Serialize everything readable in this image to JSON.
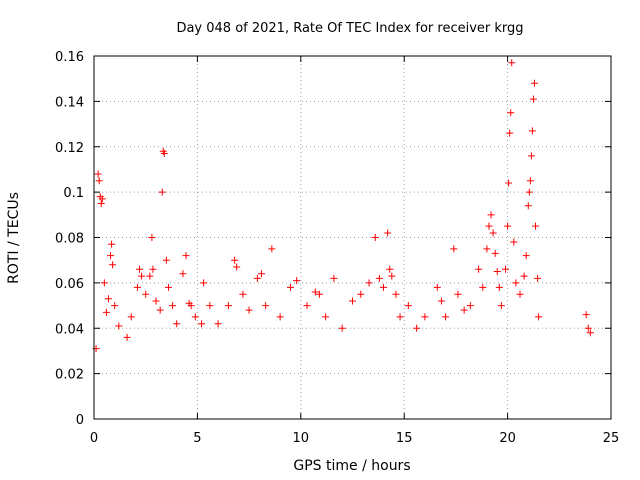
{
  "chart_data": {
    "type": "scatter",
    "title": "Day 048 of 2021, Rate Of TEC Index for receiver krgg",
    "xlabel": "GPS time / hours",
    "ylabel": "ROTI / TECUs",
    "xlim": [
      0,
      25
    ],
    "ylim": [
      0,
      0.16
    ],
    "x_ticks": [
      0,
      5,
      10,
      15,
      20,
      25
    ],
    "y_ticks": [
      0,
      0.02,
      0.04,
      0.06,
      0.08,
      0.1,
      0.12,
      0.14,
      0.16
    ],
    "x_tick_labels": [
      "0",
      "5",
      "10",
      "15",
      "20",
      "25"
    ],
    "y_tick_labels": [
      "0",
      "0.02",
      "0.04",
      "0.06",
      "0.08",
      "0.1",
      "0.12",
      "0.14",
      "0.16"
    ],
    "grid": true,
    "marker": "plus",
    "color": "#ff0000",
    "series": [
      {
        "points": [
          [
            0.1,
            0.031
          ],
          [
            0.2,
            0.108
          ],
          [
            0.25,
            0.105
          ],
          [
            0.3,
            0.098
          ],
          [
            0.35,
            0.095
          ],
          [
            0.4,
            0.097
          ],
          [
            0.5,
            0.06
          ],
          [
            0.6,
            0.047
          ],
          [
            0.7,
            0.053
          ],
          [
            0.8,
            0.072
          ],
          [
            0.85,
            0.077
          ],
          [
            0.9,
            0.068
          ],
          [
            1.0,
            0.05
          ],
          [
            1.2,
            0.041
          ],
          [
            1.6,
            0.036
          ],
          [
            1.8,
            0.045
          ],
          [
            2.1,
            0.058
          ],
          [
            2.2,
            0.066
          ],
          [
            2.3,
            0.063
          ],
          [
            2.5,
            0.055
          ],
          [
            2.7,
            0.063
          ],
          [
            2.8,
            0.08
          ],
          [
            2.85,
            0.066
          ],
          [
            3.0,
            0.052
          ],
          [
            3.2,
            0.048
          ],
          [
            3.3,
            0.1
          ],
          [
            3.35,
            0.118
          ],
          [
            3.4,
            0.117
          ],
          [
            3.5,
            0.07
          ],
          [
            3.6,
            0.058
          ],
          [
            3.8,
            0.05
          ],
          [
            4.0,
            0.042
          ],
          [
            4.3,
            0.064
          ],
          [
            4.45,
            0.072
          ],
          [
            4.6,
            0.051
          ],
          [
            4.7,
            0.05
          ],
          [
            4.9,
            0.045
          ],
          [
            5.2,
            0.042
          ],
          [
            5.3,
            0.06
          ],
          [
            5.6,
            0.05
          ],
          [
            6.0,
            0.042
          ],
          [
            6.5,
            0.05
          ],
          [
            6.8,
            0.07
          ],
          [
            6.9,
            0.067
          ],
          [
            7.2,
            0.055
          ],
          [
            7.5,
            0.048
          ],
          [
            7.9,
            0.062
          ],
          [
            8.1,
            0.064
          ],
          [
            8.3,
            0.05
          ],
          [
            8.6,
            0.075
          ],
          [
            9.0,
            0.045
          ],
          [
            9.5,
            0.058
          ],
          [
            9.8,
            0.061
          ],
          [
            10.3,
            0.05
          ],
          [
            10.7,
            0.056
          ],
          [
            10.9,
            0.055
          ],
          [
            11.2,
            0.045
          ],
          [
            11.6,
            0.062
          ],
          [
            12.0,
            0.04
          ],
          [
            12.5,
            0.052
          ],
          [
            12.9,
            0.055
          ],
          [
            13.3,
            0.06
          ],
          [
            13.6,
            0.08
          ],
          [
            13.8,
            0.062
          ],
          [
            14.0,
            0.058
          ],
          [
            14.2,
            0.082
          ],
          [
            14.3,
            0.066
          ],
          [
            14.4,
            0.063
          ],
          [
            14.6,
            0.055
          ],
          [
            14.8,
            0.045
          ],
          [
            15.2,
            0.05
          ],
          [
            15.6,
            0.04
          ],
          [
            16.0,
            0.045
          ],
          [
            16.6,
            0.058
          ],
          [
            16.8,
            0.052
          ],
          [
            17.0,
            0.045
          ],
          [
            17.4,
            0.075
          ],
          [
            17.6,
            0.055
          ],
          [
            17.9,
            0.048
          ],
          [
            18.2,
            0.05
          ],
          [
            18.6,
            0.066
          ],
          [
            18.8,
            0.058
          ],
          [
            19.0,
            0.075
          ],
          [
            19.1,
            0.085
          ],
          [
            19.2,
            0.09
          ],
          [
            19.3,
            0.082
          ],
          [
            19.4,
            0.073
          ],
          [
            19.5,
            0.065
          ],
          [
            19.6,
            0.058
          ],
          [
            19.7,
            0.05
          ],
          [
            19.9,
            0.066
          ],
          [
            20.0,
            0.085
          ],
          [
            20.05,
            0.104
          ],
          [
            20.1,
            0.126
          ],
          [
            20.15,
            0.135
          ],
          [
            20.2,
            0.157
          ],
          [
            20.3,
            0.078
          ],
          [
            20.4,
            0.06
          ],
          [
            20.6,
            0.055
          ],
          [
            20.8,
            0.063
          ],
          [
            20.9,
            0.072
          ],
          [
            21.0,
            0.094
          ],
          [
            21.05,
            0.1
          ],
          [
            21.1,
            0.105
          ],
          [
            21.15,
            0.116
          ],
          [
            21.2,
            0.127
          ],
          [
            21.25,
            0.141
          ],
          [
            21.3,
            0.148
          ],
          [
            21.35,
            0.085
          ],
          [
            21.45,
            0.062
          ],
          [
            21.5,
            0.045
          ],
          [
            23.8,
            0.046
          ],
          [
            23.9,
            0.04
          ],
          [
            24.0,
            0.038
          ]
        ]
      }
    ]
  }
}
